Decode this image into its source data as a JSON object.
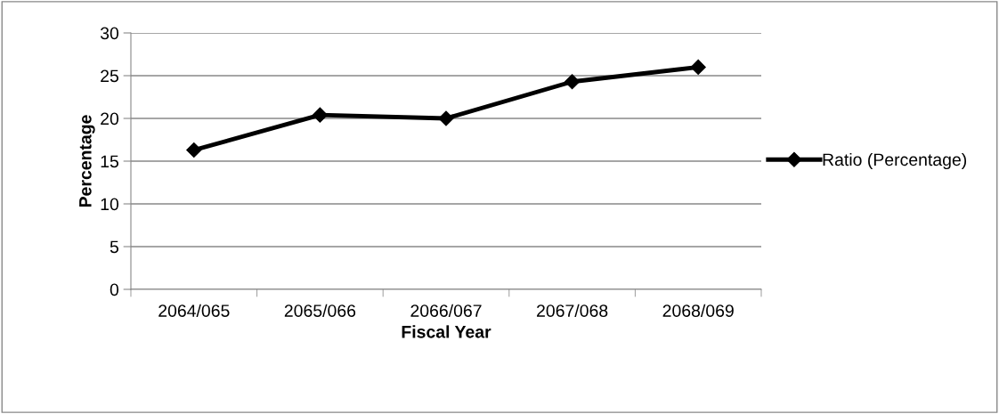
{
  "chart_data": {
    "type": "line",
    "xlabel": "Fiscal Year",
    "ylabel": "Percentage",
    "categories": [
      "2064/065",
      "2065/066",
      "2066/067",
      "2067/068",
      "2068/069"
    ],
    "series": [
      {
        "name": "Ratio (Percentage)",
        "color": "#000000",
        "values": [
          16.3,
          20.4,
          20.0,
          24.3,
          26.0
        ]
      }
    ],
    "ylim": [
      0,
      30
    ],
    "yticks": [
      0,
      5,
      10,
      15,
      20,
      25,
      30
    ],
    "grid": "y",
    "legend": "right",
    "marker": "diamond",
    "line_style": "solid"
  }
}
